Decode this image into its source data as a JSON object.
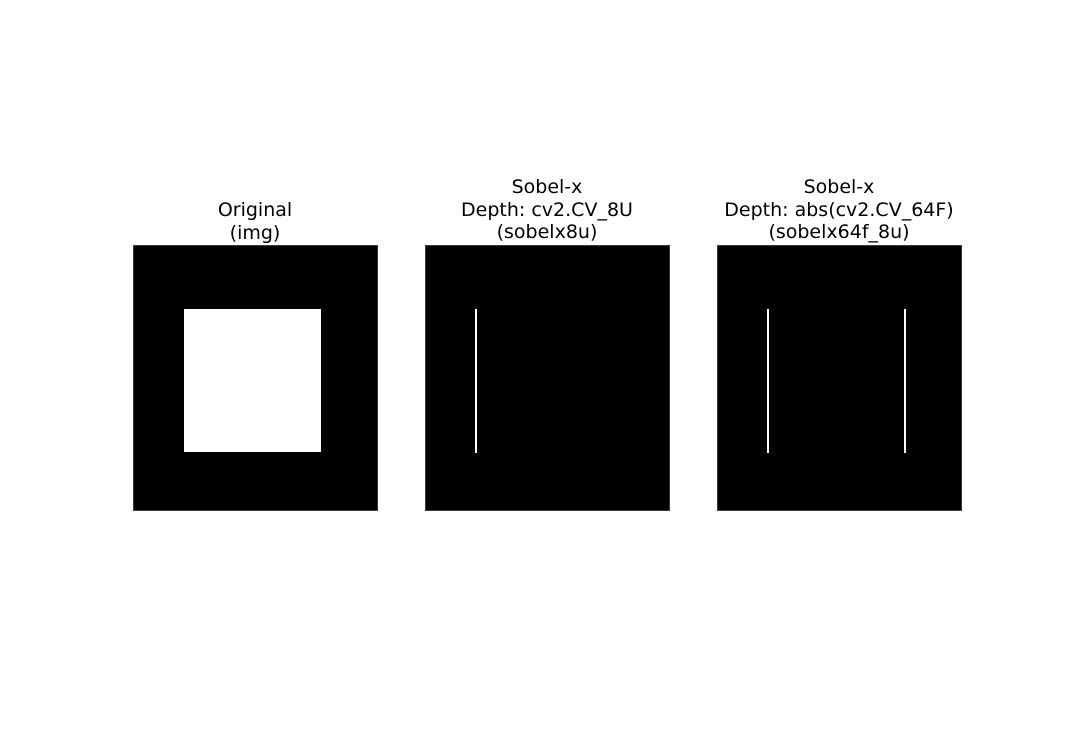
{
  "figure": {
    "panels": [
      {
        "title_lines": [
          "Original",
          "(img)"
        ]
      },
      {
        "title_lines": [
          "Sobel-x",
          "Depth: cv2.CV_8U",
          "(sobelx8u)"
        ]
      },
      {
        "title_lines": [
          "Sobel-x",
          "Depth: abs(cv2.CV_64F)",
          "(sobelx64f_8u)"
        ]
      }
    ]
  },
  "colors": {
    "background": "#ffffff",
    "image_background": "#000000",
    "foreground": "#ffffff"
  }
}
